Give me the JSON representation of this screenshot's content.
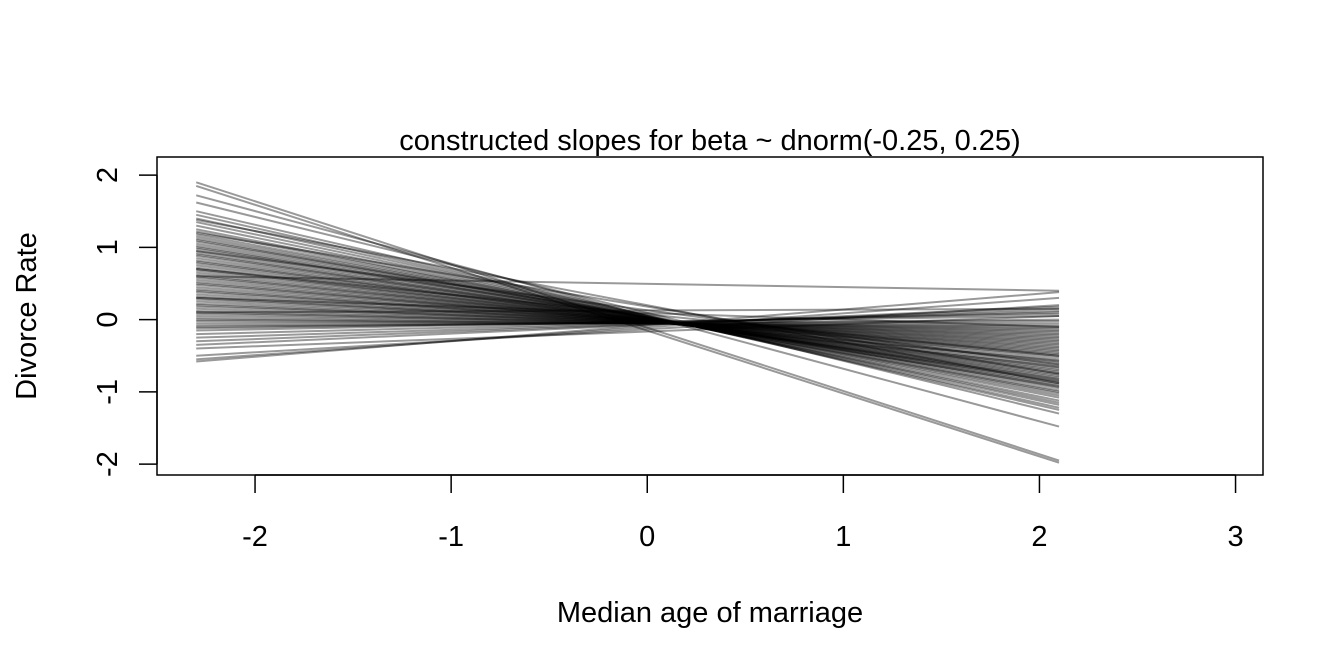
{
  "chart_data": {
    "type": "line",
    "title": "constructed slopes for beta ~ dnorm(-0.25, 0.25)",
    "xlabel": "Median age of marriage",
    "ylabel": "Divorce Rate",
    "xlim": [
      -2.5,
      3.14
    ],
    "ylim": [
      -2.15,
      2.25
    ],
    "x_ticks": [
      -2,
      -1,
      0,
      1,
      2,
      3
    ],
    "y_ticks": [
      -2,
      -1,
      0,
      1,
      2
    ],
    "x_tick_labels": [
      "-2",
      "-1",
      "0",
      "1",
      "2",
      "3"
    ],
    "y_tick_labels": [
      "-2",
      "-1",
      "0",
      "1",
      "2"
    ],
    "x_range": [
      -2.3,
      2.1
    ],
    "line_color": "#000000",
    "line_opacity": 0.4,
    "grid": false,
    "legend": "none",
    "series": [
      {
        "values": [
          1.9,
          -1.95
        ]
      },
      {
        "values": [
          1.85,
          -1.98
        ]
      },
      {
        "values": [
          1.72,
          -1.48
        ]
      },
      {
        "values": [
          1.62,
          -1.3
        ]
      },
      {
        "values": [
          1.5,
          -1.25
        ]
      },
      {
        "values": [
          1.45,
          -1.22
        ]
      },
      {
        "values": [
          1.4,
          -1.18
        ]
      },
      {
        "values": [
          1.35,
          -1.15
        ]
      },
      {
        "values": [
          1.3,
          -1.12
        ]
      },
      {
        "values": [
          1.25,
          -1.08
        ]
      },
      {
        "values": [
          1.22,
          -1.05
        ]
      },
      {
        "values": [
          1.18,
          -1.02
        ]
      },
      {
        "values": [
          1.15,
          -1.0
        ]
      },
      {
        "values": [
          1.12,
          -0.98
        ]
      },
      {
        "values": [
          1.1,
          -0.95
        ]
      },
      {
        "values": [
          1.08,
          -0.93
        ]
      },
      {
        "values": [
          1.05,
          -0.92
        ]
      },
      {
        "values": [
          1.02,
          -0.9
        ]
      },
      {
        "values": [
          1.0,
          -0.88
        ]
      },
      {
        "values": [
          0.98,
          -0.86
        ]
      },
      {
        "values": [
          0.95,
          -0.85
        ]
      },
      {
        "values": [
          0.92,
          -0.83
        ]
      },
      {
        "values": [
          0.9,
          -0.82
        ]
      },
      {
        "values": [
          0.88,
          -0.8
        ]
      },
      {
        "values": [
          0.85,
          -0.78
        ]
      },
      {
        "values": [
          0.82,
          -0.76
        ]
      },
      {
        "values": [
          0.8,
          -0.74
        ]
      },
      {
        "values": [
          0.78,
          -0.72
        ]
      },
      {
        "values": [
          0.75,
          -0.7
        ]
      },
      {
        "values": [
          0.72,
          -0.68
        ]
      },
      {
        "values": [
          0.7,
          -0.66
        ]
      },
      {
        "values": [
          0.68,
          -0.65
        ]
      },
      {
        "values": [
          0.65,
          -0.63
        ]
      },
      {
        "values": [
          0.62,
          -0.6
        ]
      },
      {
        "values": [
          0.6,
          -0.58
        ]
      },
      {
        "values": [
          0.58,
          -0.57
        ]
      },
      {
        "values": [
          0.55,
          -0.55
        ]
      },
      {
        "values": [
          0.52,
          -0.52
        ]
      },
      {
        "values": [
          0.5,
          -0.5
        ]
      },
      {
        "values": [
          0.48,
          -0.48
        ]
      },
      {
        "values": [
          0.45,
          -0.46
        ]
      },
      {
        "values": [
          0.42,
          -0.44
        ]
      },
      {
        "values": [
          0.4,
          -0.42
        ]
      },
      {
        "values": [
          0.38,
          -0.4
        ]
      },
      {
        "values": [
          0.35,
          -0.38
        ]
      },
      {
        "values": [
          0.32,
          -0.36
        ]
      },
      {
        "values": [
          0.3,
          -0.34
        ]
      },
      {
        "values": [
          0.28,
          -0.32
        ]
      },
      {
        "values": [
          0.25,
          -0.3
        ]
      },
      {
        "values": [
          0.22,
          -0.28
        ]
      },
      {
        "values": [
          0.2,
          -0.26
        ]
      },
      {
        "values": [
          0.18,
          -0.24
        ]
      },
      {
        "values": [
          0.15,
          -0.22
        ]
      },
      {
        "values": [
          0.12,
          -0.2
        ]
      },
      {
        "values": [
          0.1,
          -0.18
        ]
      },
      {
        "values": [
          0.08,
          -0.16
        ]
      },
      {
        "values": [
          0.05,
          -0.14
        ]
      },
      {
        "values": [
          0.02,
          -0.12
        ]
      },
      {
        "values": [
          0.0,
          -0.1
        ]
      },
      {
        "values": [
          -0.02,
          -0.08
        ]
      },
      {
        "values": [
          -0.05,
          -0.05
        ]
      },
      {
        "values": [
          -0.08,
          -0.02
        ]
      },
      {
        "values": [
          -0.1,
          0.0
        ]
      },
      {
        "values": [
          -0.12,
          0.05
        ]
      },
      {
        "values": [
          -0.15,
          0.08
        ]
      },
      {
        "values": [
          -0.2,
          0.1
        ]
      },
      {
        "values": [
          -0.25,
          0.12
        ]
      },
      {
        "values": [
          -0.3,
          0.15
        ]
      },
      {
        "values": [
          -0.35,
          0.18
        ]
      },
      {
        "values": [
          -0.5,
          0.2
        ]
      },
      {
        "values": [
          -0.55,
          0.3
        ]
      },
      {
        "values": [
          -0.58,
          0.38
        ]
      },
      {
        "values": [
          0.6,
          0.4
        ]
      },
      {
        "values": [
          1.38,
          -0.88
        ]
      },
      {
        "values": [
          1.2,
          -0.75
        ]
      },
      {
        "values": [
          0.95,
          -0.62
        ]
      },
      {
        "values": [
          0.7,
          -0.5
        ]
      },
      {
        "values": [
          0.3,
          -0.1
        ]
      },
      {
        "values": [
          0.1,
          0.15
        ]
      },
      {
        "values": [
          -0.4,
          0.05
        ]
      }
    ]
  }
}
